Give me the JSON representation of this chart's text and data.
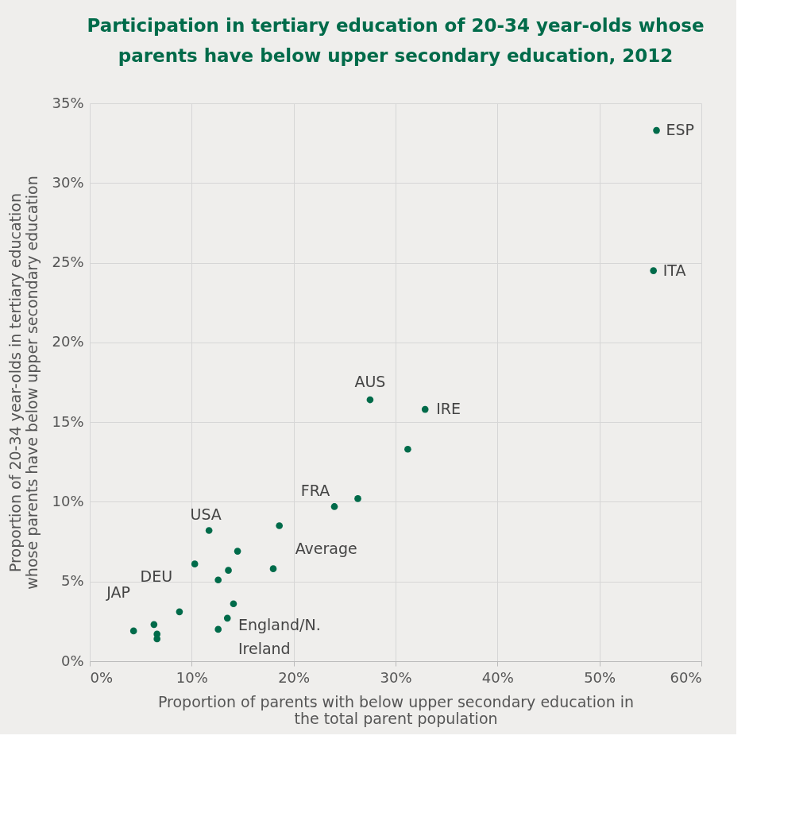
{
  "chart_data": {
    "type": "scatter",
    "title": "Participation in tertiary education of 20-34 year-olds whose parents have below upper secondary education, 2012",
    "xlabel": "Proportion  of parents with below upper secondary education in the total parent population",
    "ylabel": "Proportion of 20-34 year-olds in tertiary education whose parents have below upper secondary education",
    "x": [
      55.6,
      55.3,
      27.5,
      32.9,
      31.2,
      24.0,
      26.3,
      11.7,
      18.6,
      14.5,
      10.3,
      13.6,
      18.0,
      12.6,
      14.1,
      8.8,
      13.5,
      6.3,
      4.3,
      6.6,
      6.6,
      12.6
    ],
    "series": [
      {
        "color": "#006b4a",
        "values": [
          33.3,
          24.5,
          16.4,
          15.8,
          13.3,
          9.7,
          10.2,
          8.2,
          8.5,
          6.9,
          6.1,
          5.7,
          5.8,
          5.1,
          3.6,
          3.1,
          2.7,
          2.3,
          1.9,
          1.7,
          1.4,
          2.0
        ]
      }
    ],
    "xlim": [
      0,
      60
    ],
    "ylim": [
      0,
      35
    ],
    "xticks": [
      {
        "value": 0,
        "label": "0%"
      },
      {
        "value": 10,
        "label": "10%"
      },
      {
        "value": 20,
        "label": "20%"
      },
      {
        "value": 30,
        "label": "30%"
      },
      {
        "value": 40,
        "label": "40%"
      },
      {
        "value": 50,
        "label": "50%"
      },
      {
        "value": 60,
        "label": "60%"
      }
    ],
    "yticks": [
      {
        "value": 0,
        "label": "0%"
      },
      {
        "value": 5,
        "label": "5%"
      },
      {
        "value": 10,
        "label": "10%"
      },
      {
        "value": 15,
        "label": "15%"
      },
      {
        "value": 20,
        "label": "20%"
      },
      {
        "value": 25,
        "label": "25%"
      },
      {
        "value": 30,
        "label": "30%"
      },
      {
        "value": 35,
        "label": "35%"
      }
    ],
    "grid": true,
    "marker": "circle",
    "annotations": [
      {
        "text": "ESP",
        "x": 55.6,
        "y": 33.3
      },
      {
        "text": "ITA",
        "x": 55.3,
        "y": 24.5
      },
      {
        "text": "AUS",
        "x": 27.5,
        "y": 16.4
      },
      {
        "text": "IRE",
        "x": 32.9,
        "y": 15.8
      },
      {
        "text": "FRA",
        "x": 24.0,
        "y": 9.7
      },
      {
        "text": "USA",
        "x": 11.7,
        "y": 8.2
      },
      {
        "text": "Average",
        "x": 18.6,
        "y": 8.5
      },
      {
        "text": "England/N. Ireland",
        "x": 14.1,
        "y": 3.6
      },
      {
        "text": "DEU",
        "x": 6.3,
        "y": 2.3
      },
      {
        "text": "JAP",
        "x": 4.3,
        "y": 1.9
      }
    ]
  }
}
